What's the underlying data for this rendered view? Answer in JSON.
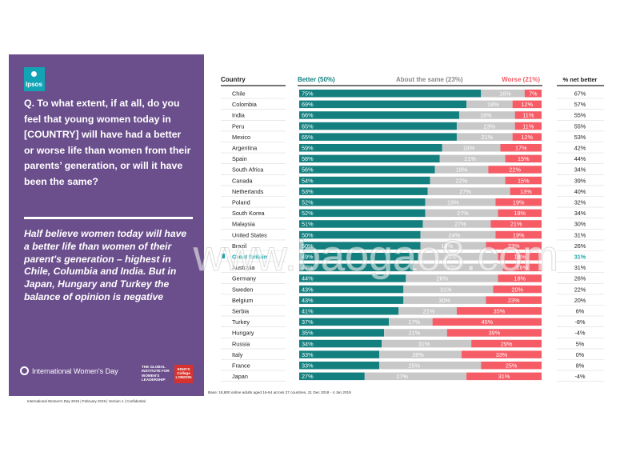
{
  "brand": {
    "logo_text": "Ipsos"
  },
  "panel": {
    "question": "Q. To what extent, if at all, do you feel that young women today in [COUNTRY] will have had a better or worse life than women from their parents’ generation, or will it have been the same?",
    "finding": "Half believe women today will have a better life than women of their parent's generation – highest in Chile, Columbia and India. But in Japan, Hungary and Turkey the balance of opinion is negative",
    "iwd_label": "International Women's Day",
    "global_institute": "THE GLOBAL INSTITUTE FOR WOMEN'S LEADERSHIP",
    "kings_logo": "KING'S College LONDON"
  },
  "footer": "International Women's Day 2019 | February 2019 | Version 1 | Confidential",
  "base_note": "Base: 18,800 online adults aged 16-64 across 27 countries, 21 Dec 2018 - 4 Jan 2019",
  "watermark": "www.baogao8.com",
  "colors": {
    "panel": "#6b4f8c",
    "better": "#137f7f",
    "same": "#c8c8c8",
    "worse": "#f65c66",
    "highlight": "#1ba3a8",
    "text": "#222222"
  },
  "chart_data": {
    "type": "bar",
    "stacked": true,
    "orientation": "horizontal",
    "headers": {
      "country": "Country",
      "better": "Better (50%)",
      "same": "About the same (23%)",
      "worse": "Worse (21%)",
      "net": "% net better"
    },
    "highlight": "Great Britain",
    "categories": [
      "Chile",
      "Colombia",
      "India",
      "Peru",
      "Mexico",
      "Argentina",
      "Spain",
      "South Africa",
      "Canada",
      "Netherlands",
      "Poland",
      "South Korea",
      "Malaysia",
      "United States",
      "Brazil",
      "Great Britain",
      "Australia",
      "Germany",
      "Sweden",
      "Belgium",
      "Serbia",
      "Turkey",
      "Hungary",
      "Russia",
      "Italy",
      "France",
      "Japan"
    ],
    "series": [
      {
        "name": "Better (50%)",
        "values": [
          75,
          69,
          66,
          65,
          65,
          59,
          58,
          56,
          54,
          53,
          52,
          52,
          51,
          50,
          50,
          49,
          47,
          44,
          43,
          43,
          41,
          37,
          35,
          34,
          33,
          33,
          27
        ]
      },
      {
        "name": "About the same (23%)",
        "values": [
          16,
          18,
          18,
          23,
          21,
          18,
          21,
          18,
          22,
          27,
          19,
          27,
          27,
          24,
          18,
          23,
          29,
          26,
          31,
          30,
          21,
          17,
          21,
          31,
          28,
          25,
          27
        ]
      },
      {
        "name": "Worse (21%)",
        "values": [
          7,
          12,
          11,
          11,
          12,
          17,
          15,
          22,
          15,
          13,
          19,
          18,
          21,
          19,
          23,
          18,
          16,
          18,
          20,
          23,
          35,
          45,
          39,
          29,
          33,
          25,
          31
        ]
      }
    ],
    "net_better": [
      "67%",
      "57%",
      "55%",
      "55%",
      "53%",
      "42%",
      "44%",
      "34%",
      "39%",
      "40%",
      "32%",
      "34%",
      "30%",
      "31%",
      "26%",
      "31%",
      "31%",
      "26%",
      "22%",
      "20%",
      "6%",
      "-8%",
      "-4%",
      "5%",
      "0%",
      "8%",
      "-4%"
    ]
  }
}
